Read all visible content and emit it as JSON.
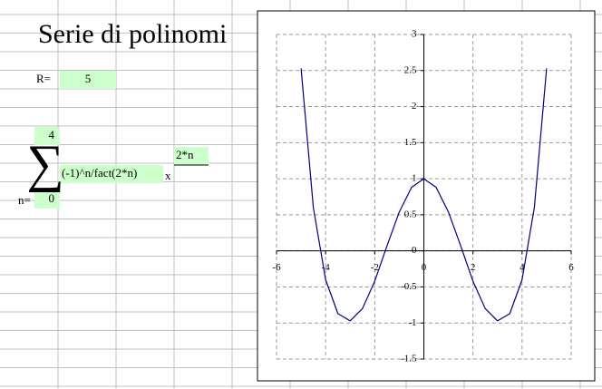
{
  "sheet": {
    "title": "Serie di polinomi",
    "r_label": "R=",
    "r_value": "5",
    "upper_limit": "4",
    "sigma": "∑",
    "term": "(-1)^n/fact(2*n)",
    "x_symbol": "x",
    "exponent": "2*n",
    "n_label": "n=",
    "lower_limit": "0"
  },
  "chart_data": {
    "type": "line",
    "x": [
      -5,
      -4.5,
      -4,
      -3.5,
      -3,
      -2.5,
      -2,
      -1.5,
      -1,
      -0.5,
      0,
      0.5,
      1,
      1.5,
      2,
      2.5,
      3,
      3.5,
      4,
      4.5,
      5
    ],
    "values": [
      2.53,
      0.6,
      -0.4,
      -0.87,
      -0.97,
      -0.8,
      -0.42,
      0.07,
      0.54,
      0.88,
      1,
      0.88,
      0.54,
      0.07,
      -0.42,
      -0.8,
      -0.97,
      -0.87,
      -0.4,
      0.6,
      2.53
    ],
    "color": "#000080",
    "xlim": [
      -6,
      6
    ],
    "xticks": [
      -6,
      -4,
      -2,
      0,
      2,
      4,
      6
    ],
    "ylim": [
      -1.5,
      3
    ],
    "yticks": [
      -1.5,
      -1,
      -0.5,
      0,
      0.5,
      1,
      1.5,
      2,
      2.5,
      3
    ],
    "grid": true
  }
}
